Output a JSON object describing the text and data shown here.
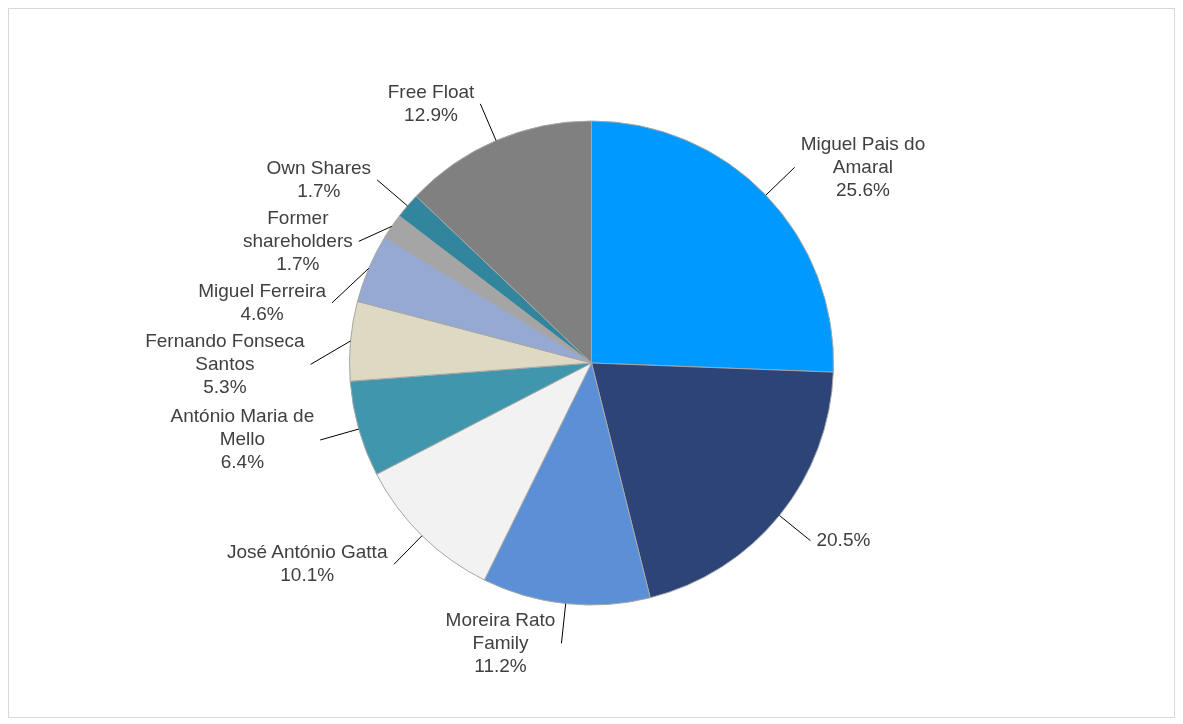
{
  "chart_data": {
    "type": "pie",
    "categories": [
      "Miguel Pais do Amaral",
      null,
      "Moreira Rato Family",
      "José António Gatta",
      "António Maria de Mello",
      "Fernando Fonseca Santos",
      "Miguel Ferreira",
      "Former shareholders",
      "Own Shares",
      "Free Float"
    ],
    "values": [
      25.6,
      20.5,
      11.2,
      10.1,
      6.4,
      5.3,
      4.6,
      1.7,
      1.7,
      12.9
    ],
    "value_labels": [
      "25.6%",
      "20.5%",
      "11.2%",
      "10.1%",
      "6.4%",
      "5.3%",
      "4.6%",
      "1.7%",
      "1.7%",
      "12.9%"
    ],
    "colors": [
      "#0099ff",
      "#2c4478",
      "#5b8fd6",
      "#f2f2f2",
      "#4097ad",
      "#ddd9c3",
      "#95a9d2",
      "#a5a5a5",
      "#31859c",
      "#808080"
    ],
    "legend": false
  }
}
